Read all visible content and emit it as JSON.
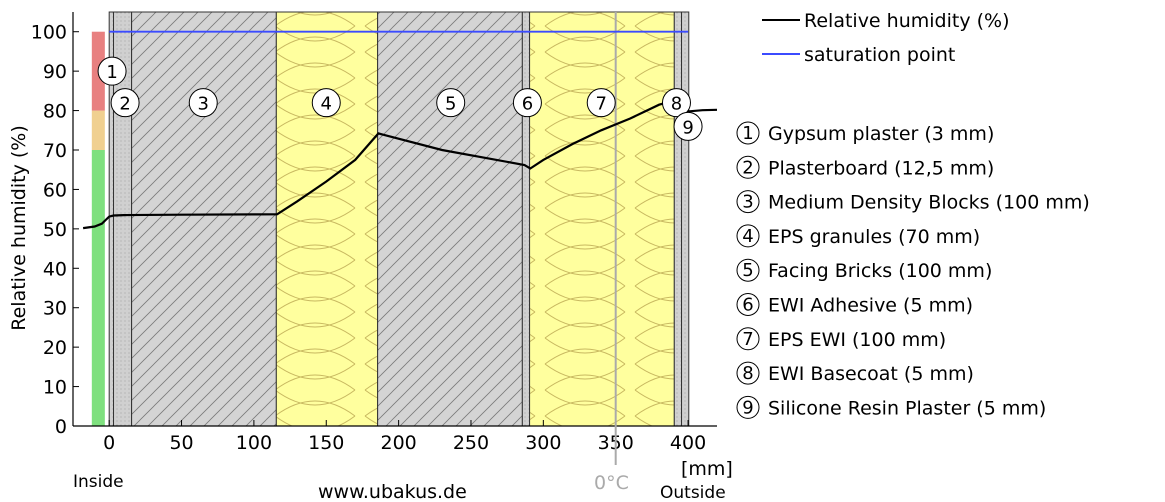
{
  "chart_data": {
    "type": "line",
    "ylabel": "Relative humidity (%)",
    "xlabel": "[mm]",
    "xlim": [
      -25,
      420
    ],
    "ylim": [
      0,
      105
    ],
    "x_ticks": [
      0,
      50,
      100,
      150,
      200,
      250,
      300,
      350,
      400
    ],
    "y_ticks": [
      0,
      10,
      20,
      30,
      40,
      50,
      60,
      70,
      80,
      90,
      100
    ],
    "inside_label": "Inside",
    "outside_label": "Outside",
    "source_label": "www.ubakus.de",
    "zero_c_label": "0°C",
    "zero_c_x": 350,
    "humidity_scale": [
      {
        "from": 0,
        "to": 70,
        "color": "#7ee07e"
      },
      {
        "from": 70,
        "to": 80,
        "color": "#f0d090"
      },
      {
        "from": 80,
        "to": 100,
        "color": "#e88080"
      }
    ],
    "series": [
      {
        "name": "Relative humidity (%)",
        "color": "#000000",
        "x": [
          -18,
          -10,
          -5,
          -2,
          0,
          3,
          10,
          50,
          116,
          130,
          150,
          170,
          186,
          230,
          287,
          291,
          300,
          320,
          340,
          360,
          380,
          391,
          395,
          400,
          410,
          420
        ],
        "y": [
          50.2,
          50.6,
          51.3,
          52.4,
          53.1,
          53.4,
          53.5,
          53.6,
          53.7,
          57.0,
          62.0,
          67.5,
          74.2,
          70.0,
          66.2,
          65.3,
          67.5,
          71.5,
          75.0,
          78.0,
          81.5,
          82.6,
          79.2,
          79.8,
          80.1,
          80.2
        ]
      },
      {
        "name": "saturation point",
        "color": "#3b4bff",
        "x": [
          0,
          400
        ],
        "y": [
          100,
          100
        ]
      }
    ],
    "layers": [
      {
        "num": "1",
        "name": "Gypsum plaster (3 mm)",
        "from": 0,
        "to": 3,
        "fill": "#cfcfcf",
        "pattern": "dots"
      },
      {
        "num": "2",
        "name": "Plasterboard (12,5 mm)",
        "from": 3,
        "to": 15.5,
        "fill": "#dcdcdc",
        "pattern": "dots"
      },
      {
        "num": "3",
        "name": "Medium Density Blocks (100 mm)",
        "from": 15.5,
        "to": 115.5,
        "fill": "#d4d4d4",
        "pattern": "hatch"
      },
      {
        "num": "4",
        "name": "EPS granules (70 mm)",
        "from": 115.5,
        "to": 185.5,
        "fill": "#ffff9e",
        "pattern": "insulation"
      },
      {
        "num": "5",
        "name": "Facing Bricks (100 mm)",
        "from": 185.5,
        "to": 285.5,
        "fill": "#d4d4d4",
        "pattern": "hatch"
      },
      {
        "num": "6",
        "name": "EWI Adhesive (5 mm)",
        "from": 285.5,
        "to": 290.5,
        "fill": "#c8c8c8",
        "pattern": "dots"
      },
      {
        "num": "7",
        "name": "EPS EWI (100 mm)",
        "from": 290.5,
        "to": 390.5,
        "fill": "#ffff9e",
        "pattern": "insulation"
      },
      {
        "num": "8",
        "name": "EWI Basecoat (5 mm)",
        "from": 390.5,
        "to": 395.5,
        "fill": "#c8c8c8",
        "pattern": "dots"
      },
      {
        "num": "9",
        "name": "Silicone Resin Plaster (5 mm)",
        "from": 395.5,
        "to": 400.5,
        "fill": "#d8d8d8",
        "pattern": "dots"
      }
    ],
    "layer_labels_on_chart": [
      {
        "num": "1",
        "x": 2,
        "y": 90
      },
      {
        "num": "2",
        "x": 11,
        "y": 82
      },
      {
        "num": "3",
        "x": 65,
        "y": 82
      },
      {
        "num": "4",
        "x": 150,
        "y": 82
      },
      {
        "num": "5",
        "x": 236,
        "y": 82
      },
      {
        "num": "6",
        "x": 289,
        "y": 82
      },
      {
        "num": "7",
        "x": 340,
        "y": 82
      },
      {
        "num": "8",
        "x": 392,
        "y": 82
      },
      {
        "num": "9",
        "x": 400,
        "y": 76
      }
    ]
  }
}
